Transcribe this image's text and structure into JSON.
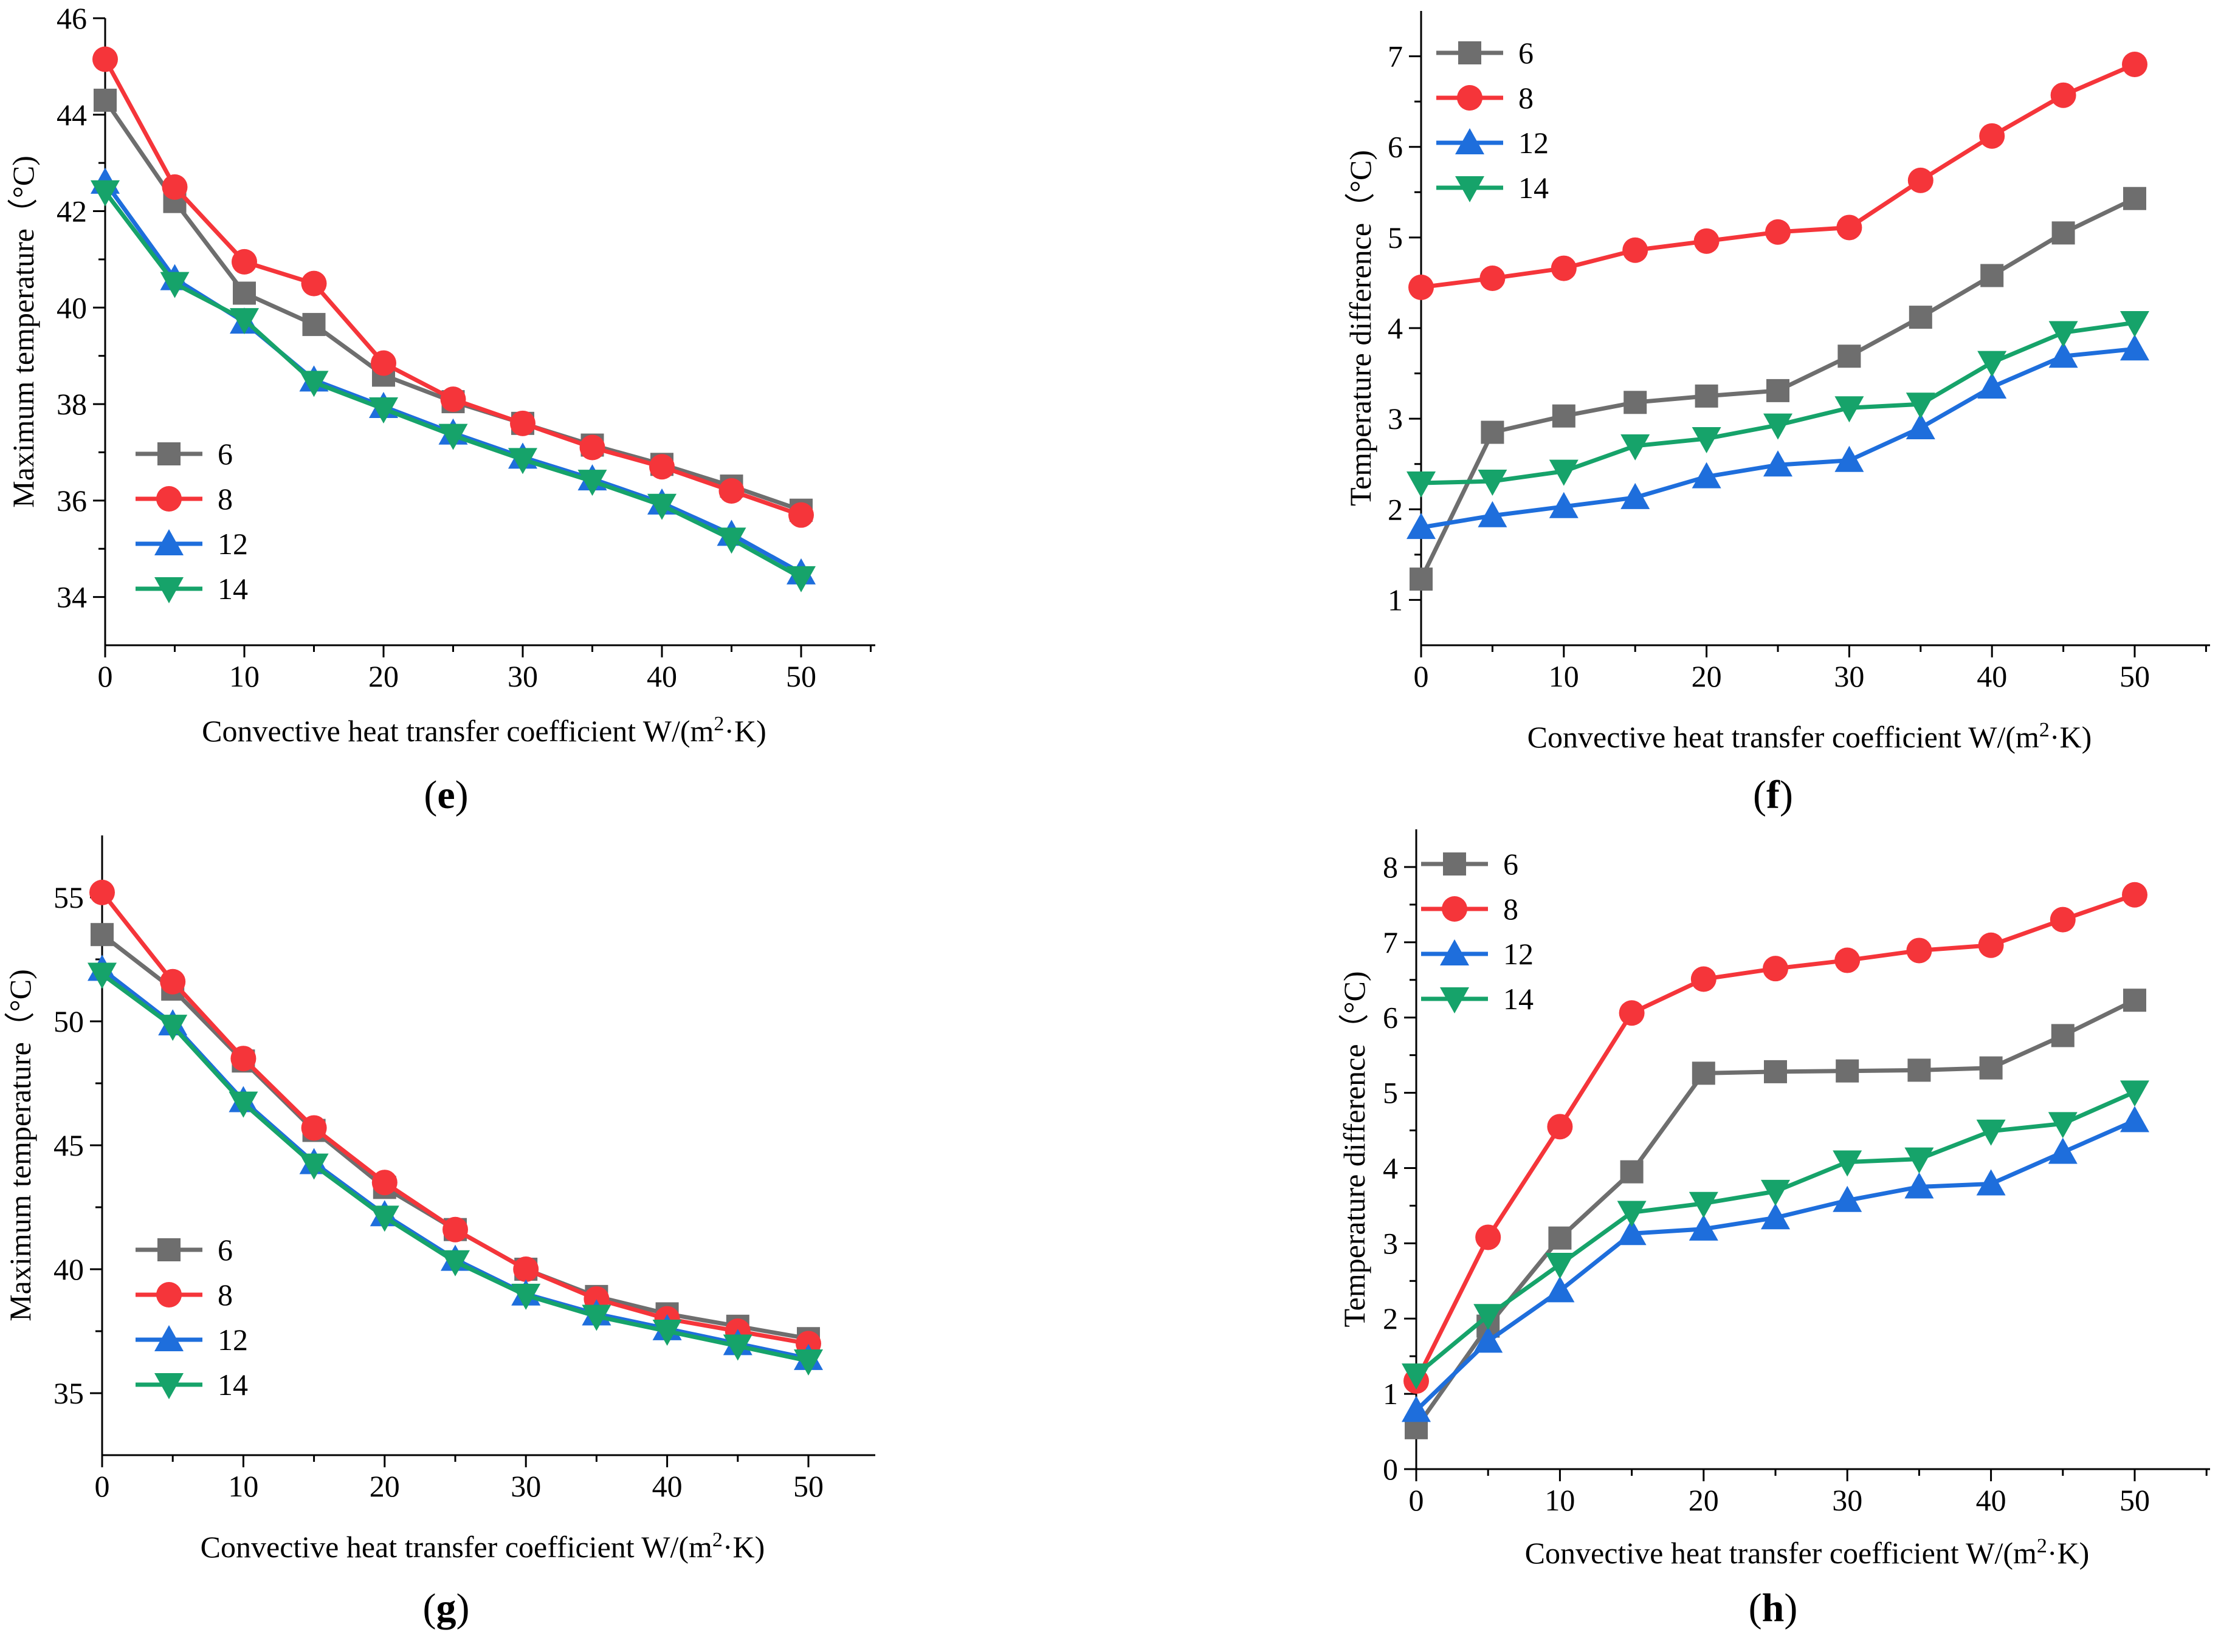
{
  "colors": {
    "6": "#6e6e6e",
    "8": "#f5353a",
    "12": "#1e6edc",
    "14": "#16a36a"
  },
  "markers": {
    "6": "square",
    "8": "circle",
    "12": "triangle-up",
    "14": "triangle-down"
  },
  "chart_data": [
    {
      "panel": "e",
      "type": "line",
      "ylabel": "Maximum temperature（°C)",
      "xlabel": "Convective heat transfer coefficient W/(m2·K)",
      "xlim": [
        0,
        55
      ],
      "ylim": [
        33,
        46
      ],
      "xticks": [
        0,
        10,
        20,
        30,
        40,
        50
      ],
      "yticks": [
        34,
        36,
        38,
        40,
        42,
        44,
        46
      ],
      "legend_position": "bottom-left",
      "x": [
        0,
        5,
        10,
        15,
        20,
        25,
        30,
        35,
        40,
        45,
        50
      ],
      "series": [
        {
          "name": "6",
          "values": [
            44.3,
            42.2,
            40.3,
            39.65,
            38.6,
            38.05,
            37.6,
            37.15,
            36.75,
            36.3,
            35.8
          ]
        },
        {
          "name": "8",
          "values": [
            45.15,
            42.5,
            40.95,
            40.5,
            38.85,
            38.1,
            37.6,
            37.1,
            36.7,
            36.2,
            35.7
          ]
        },
        {
          "name": "12",
          "values": [
            42.6,
            40.6,
            39.7,
            38.5,
            37.95,
            37.4,
            36.9,
            36.45,
            35.95,
            35.3,
            34.5
          ]
        },
        {
          "name": "14",
          "values": [
            42.4,
            40.5,
            39.75,
            38.45,
            37.9,
            37.35,
            36.85,
            36.4,
            35.9,
            35.2,
            34.4
          ]
        }
      ]
    },
    {
      "panel": "f",
      "type": "line",
      "ylabel": "Temperature difference（°C)",
      "xlabel": "Convective heat transfer coefficient W/(m2·K)",
      "xlim": [
        0,
        55
      ],
      "ylim": [
        0.5,
        7.5
      ],
      "xticks": [
        0,
        10,
        20,
        30,
        40,
        50
      ],
      "yticks": [
        1,
        2,
        3,
        4,
        5,
        6,
        7
      ],
      "legend_position": "top-left",
      "x": [
        0,
        5,
        10,
        15,
        20,
        25,
        30,
        35,
        40,
        45,
        50
      ],
      "series": [
        {
          "name": "6",
          "values": [
            1.23,
            2.85,
            3.03,
            3.18,
            3.25,
            3.31,
            3.69,
            4.12,
            4.58,
            5.05,
            5.43
          ]
        },
        {
          "name": "8",
          "values": [
            4.45,
            4.55,
            4.66,
            4.86,
            4.96,
            5.06,
            5.11,
            5.63,
            6.12,
            6.57,
            6.91
          ]
        },
        {
          "name": "12",
          "values": [
            1.8,
            1.93,
            2.03,
            2.13,
            2.36,
            2.49,
            2.54,
            2.9,
            3.35,
            3.69,
            3.77
          ]
        },
        {
          "name": "14",
          "values": [
            2.29,
            2.31,
            2.42,
            2.7,
            2.78,
            2.93,
            3.12,
            3.16,
            3.62,
            3.95,
            4.06
          ]
        }
      ]
    },
    {
      "panel": "g",
      "type": "line",
      "ylabel": "Maximum temperature（°C)",
      "xlabel": "Convective heat transfer coefficient W/(m2·K)",
      "xlim": [
        0,
        55
      ],
      "ylim": [
        32.5,
        57.5
      ],
      "xticks": [
        0,
        10,
        20,
        30,
        40,
        50
      ],
      "yticks": [
        35,
        40,
        45,
        50,
        55
      ],
      "legend_position": "bottom-left",
      "x": [
        0,
        5,
        10,
        15,
        20,
        25,
        30,
        35,
        40,
        45,
        50
      ],
      "series": [
        {
          "name": "6",
          "values": [
            53.5,
            51.3,
            48.4,
            45.6,
            43.3,
            41.6,
            40.0,
            38.9,
            38.2,
            37.7,
            37.2
          ]
        },
        {
          "name": "8",
          "values": [
            55.2,
            51.6,
            48.5,
            45.7,
            43.5,
            41.6,
            40.0,
            38.8,
            38.0,
            37.5,
            37.0
          ]
        },
        {
          "name": "12",
          "values": [
            52.1,
            49.9,
            46.8,
            44.3,
            42.2,
            40.4,
            39.0,
            38.2,
            37.6,
            37.0,
            36.4
          ]
        },
        {
          "name": "14",
          "values": [
            51.9,
            49.8,
            46.7,
            44.2,
            42.1,
            40.3,
            38.95,
            38.1,
            37.5,
            36.9,
            36.3
          ]
        }
      ]
    },
    {
      "panel": "h",
      "type": "line",
      "ylabel": "Temperature difference（°C)",
      "xlabel": "Convective heat transfer coefficient W/(m2·K)",
      "xlim": [
        0,
        55
      ],
      "ylim": [
        0,
        8.5
      ],
      "xticks": [
        0,
        10,
        20,
        30,
        40,
        50
      ],
      "yticks": [
        0,
        1,
        2,
        3,
        4,
        5,
        6,
        7,
        8
      ],
      "legend_position": "top-left",
      "x": [
        0,
        5,
        10,
        15,
        20,
        25,
        30,
        35,
        40,
        45,
        50
      ],
      "series": [
        {
          "name": "6",
          "values": [
            0.55,
            1.9,
            3.07,
            3.95,
            5.26,
            5.28,
            5.29,
            5.3,
            5.33,
            5.76,
            6.23
          ]
        },
        {
          "name": "8",
          "values": [
            1.17,
            3.08,
            4.55,
            6.06,
            6.51,
            6.65,
            6.76,
            6.89,
            6.96,
            7.3,
            7.63
          ]
        },
        {
          "name": "12",
          "values": [
            0.78,
            1.7,
            2.37,
            3.13,
            3.19,
            3.34,
            3.57,
            3.75,
            3.79,
            4.21,
            4.63
          ]
        },
        {
          "name": "14",
          "values": [
            1.25,
            2.04,
            2.72,
            3.41,
            3.53,
            3.69,
            4.08,
            4.12,
            4.49,
            4.59,
            5.01
          ]
        }
      ]
    }
  ]
}
